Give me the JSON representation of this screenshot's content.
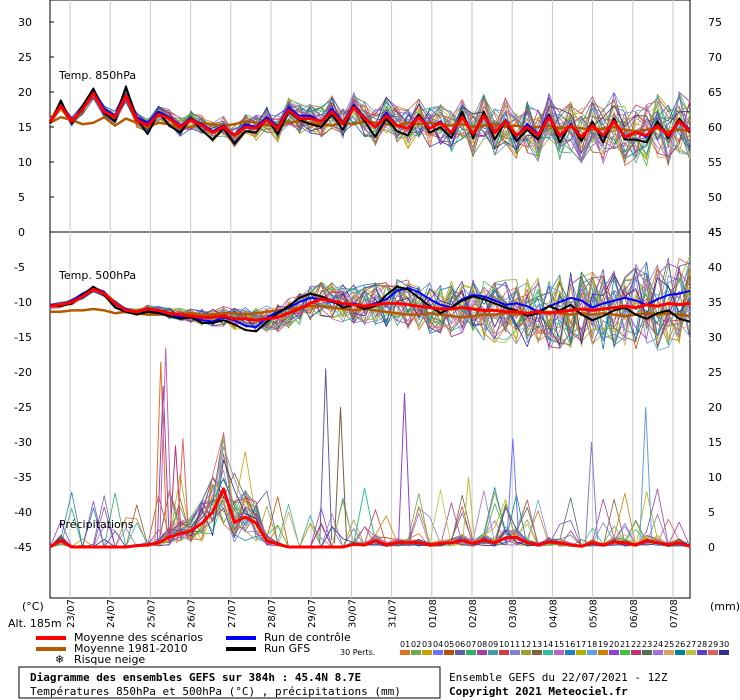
{
  "chart_data": {
    "type": "line",
    "title": "Diagramme des ensembles GEFS sur 384h : 45.4N 8.7E",
    "subtitle": "Températures 850hPa et 500hPa (°C) , précipitations (mm)",
    "run_info": "Ensemble GEFS du 22/07/2021 - 12Z",
    "copyright": "Copyright 2021 Meteociel.fr",
    "altitude": "Alt. 185m",
    "left_unit": "(°C)",
    "right_unit": "(mm)",
    "dates": [
      "23/07",
      "24/07",
      "25/07",
      "26/07",
      "27/07",
      "28/07",
      "29/07",
      "30/07",
      "31/07",
      "01/08",
      "02/08",
      "03/08",
      "04/08",
      "05/08",
      "06/08",
      "07/08"
    ],
    "panels": [
      {
        "label": "Temp. 850hPa",
        "left_ticks": [
          "30",
          "25",
          "20",
          "15",
          "10",
          "5",
          "0"
        ],
        "right_ticks": [
          "75",
          "70",
          "65",
          "60",
          "55",
          "50",
          "45"
        ],
        "ylim": [
          0,
          30
        ],
        "mean": [
          15.8,
          18.0,
          15.8,
          17.5,
          19.8,
          17.2,
          16.4,
          19.5,
          16.0,
          15.2,
          16.8,
          16.2,
          15.0,
          16.0,
          15.2,
          14.2,
          15.0,
          13.8,
          15.0,
          14.8,
          16.0,
          14.8,
          17.4,
          16.2,
          16.2,
          15.8,
          17.2,
          15.4,
          17.8,
          16.2,
          15.0,
          16.6,
          15.2,
          14.8,
          16.4,
          14.8,
          15.6,
          14.2,
          16.4,
          14.0,
          16.6,
          14.2,
          15.8,
          13.8,
          15.0,
          13.8,
          16.4,
          13.8,
          15.2,
          13.6,
          15.2,
          13.8,
          15.8,
          13.6,
          14.2,
          13.8,
          15.2,
          13.8,
          15.8,
          14.4
        ],
        "gfs": [
          15.5,
          18.8,
          15.5,
          18.0,
          20.5,
          17.0,
          15.8,
          20.8,
          16.2,
          14.0,
          17.0,
          15.2,
          14.2,
          16.2,
          14.5,
          13.2,
          14.8,
          12.6,
          14.4,
          14.2,
          16.2,
          14.0,
          17.2,
          16.0,
          15.4,
          15.0,
          16.8,
          14.6,
          18.0,
          15.8,
          13.6,
          16.2,
          14.4,
          13.8,
          16.8,
          14.2,
          15.0,
          13.4,
          17.2,
          13.4,
          17.2,
          13.2,
          15.8,
          13.0,
          14.6,
          13.2,
          16.6,
          12.8,
          15.4,
          13.0,
          15.8,
          12.8,
          16.2,
          13.2,
          13.2,
          12.8,
          15.8,
          13.4,
          16.2,
          14.2
        ],
        "control": [
          15.6,
          18.6,
          15.8,
          17.9,
          20.4,
          17.6,
          16.6,
          20.6,
          16.4,
          15.6,
          17.2,
          16.4,
          15.2,
          16.2,
          15.4,
          14.4,
          15.2,
          13.8,
          15.4,
          15.0,
          16.4,
          15.0,
          17.8,
          16.6,
          16.6,
          15.8,
          17.6,
          15.6,
          18.2,
          16.4,
          15.0,
          17.0,
          15.2,
          14.8,
          16.8,
          14.8,
          15.8,
          14.0,
          16.6,
          14.0,
          17.0,
          14.2,
          16.0,
          13.6,
          15.4,
          14.0,
          16.8,
          13.6,
          15.4,
          13.4,
          15.4,
          13.6,
          16.0,
          13.4,
          14.2,
          13.6,
          15.6,
          13.8,
          16.0,
          14.6
        ],
        "climate": [
          15.6,
          16.4,
          16.0,
          15.4,
          15.6,
          16.4,
          15.2,
          16.2,
          15.6,
          15.0,
          15.6,
          15.4,
          14.8,
          15.0,
          15.6,
          15.4,
          15.2,
          15.4,
          15.8,
          15.6,
          15.2,
          15.4,
          15.6,
          15.8,
          15.6,
          15.4,
          15.2,
          15.6,
          15.4,
          15.8,
          15.6,
          15.4,
          15.2,
          15.6,
          15.4,
          15.6,
          15.4,
          15.2,
          15.4,
          15.0,
          15.2,
          15.4,
          15.0,
          15.2,
          14.8,
          15.0,
          15.2,
          14.8,
          15.0,
          14.8,
          14.6,
          14.8,
          15.0,
          14.6,
          14.4,
          14.6,
          14.8,
          14.4,
          14.6,
          14.4
        ]
      },
      {
        "label": "Temp. 500hPa",
        "left_ticks": [
          "-5",
          "-10",
          "-15",
          "-20",
          "-25",
          "-30",
          "-35",
          "-40",
          "-45"
        ],
        "right_ticks": [
          "45",
          "40",
          "35",
          "30",
          "25",
          "20",
          "15",
          "10",
          "5",
          "0"
        ],
        "ylim": [
          -45,
          -5
        ],
        "mean": [
          -10.6,
          -10.4,
          -10.0,
          -9.2,
          -8.2,
          -8.8,
          -10.2,
          -11.2,
          -11.4,
          -11.0,
          -11.2,
          -11.6,
          -11.8,
          -12.0,
          -12.2,
          -12.2,
          -12.0,
          -12.4,
          -12.4,
          -12.6,
          -12.4,
          -12.2,
          -11.6,
          -11.0,
          -10.2,
          -9.6,
          -9.8,
          -10.2,
          -10.4,
          -10.6,
          -10.4,
          -10.2,
          -10.2,
          -10.4,
          -10.6,
          -10.8,
          -11.0,
          -11.0,
          -10.8,
          -11.0,
          -11.2,
          -11.2,
          -11.4,
          -11.4,
          -11.6,
          -11.4,
          -11.6,
          -11.4,
          -11.2,
          -11.0,
          -11.2,
          -11.0,
          -10.8,
          -10.6,
          -10.8,
          -10.4,
          -10.6,
          -10.2,
          -10.4,
          -10.2
        ],
        "gfs": [
          -10.6,
          -10.6,
          -10.2,
          -9.0,
          -7.8,
          -9.0,
          -10.8,
          -11.4,
          -11.8,
          -11.4,
          -11.6,
          -12.0,
          -12.4,
          -12.2,
          -13.0,
          -13.0,
          -12.6,
          -13.2,
          -14.0,
          -14.2,
          -12.8,
          -11.6,
          -10.6,
          -9.4,
          -8.8,
          -9.2,
          -9.8,
          -10.8,
          -10.4,
          -11.0,
          -10.6,
          -9.0,
          -7.8,
          -8.2,
          -9.4,
          -10.6,
          -11.6,
          -10.8,
          -9.8,
          -9.2,
          -9.6,
          -10.2,
          -10.8,
          -11.2,
          -12.0,
          -11.6,
          -10.6,
          -11.2,
          -10.4,
          -11.8,
          -12.6,
          -12.0,
          -11.2,
          -10.8,
          -11.8,
          -12.4,
          -11.6,
          -11.2,
          -12.4,
          -12.8
        ],
        "control": [
          -10.4,
          -10.4,
          -9.8,
          -8.8,
          -8.0,
          -8.6,
          -10.4,
          -11.0,
          -11.4,
          -11.2,
          -11.4,
          -11.6,
          -12.2,
          -12.2,
          -12.6,
          -12.8,
          -12.2,
          -12.6,
          -13.4,
          -13.6,
          -12.2,
          -11.4,
          -10.8,
          -10.0,
          -9.4,
          -9.6,
          -10.0,
          -10.4,
          -10.2,
          -10.6,
          -10.2,
          -9.6,
          -8.4,
          -8.0,
          -8.6,
          -9.6,
          -10.4,
          -10.8,
          -9.6,
          -9.0,
          -9.2,
          -9.8,
          -10.4,
          -10.2,
          -10.6,
          -11.4,
          -10.6,
          -10.0,
          -9.4,
          -9.8,
          -10.8,
          -10.2,
          -9.8,
          -9.4,
          -9.8,
          -10.4,
          -9.6,
          -9.0,
          -8.8,
          -8.4
        ],
        "climate": [
          -11.4,
          -11.4,
          -11.2,
          -11.2,
          -11.0,
          -11.2,
          -11.6,
          -11.4,
          -11.6,
          -11.8,
          -11.8,
          -11.6,
          -11.8,
          -11.6,
          -11.8,
          -11.8,
          -11.6,
          -11.6,
          -11.8,
          -11.6,
          -11.4,
          -11.2,
          -11.0,
          -10.8,
          -10.6,
          -10.6,
          -10.8,
          -11.0,
          -11.2,
          -11.0,
          -11.2,
          -11.4,
          -11.6,
          -11.8,
          -11.8,
          -11.6,
          -11.8,
          -12.0,
          -12.2,
          -12.0,
          -11.8,
          -11.8,
          -11.6,
          -11.8,
          -11.6,
          -11.6,
          -11.4,
          -11.6,
          -11.8,
          -11.6,
          -11.8,
          -11.6,
          -11.8,
          -12.0,
          -11.8,
          -11.6,
          -11.8,
          -11.6,
          -11.8,
          -12.0
        ]
      }
    ],
    "precip_label": "Précipitations",
    "precip_mean_mm": [
      0,
      0.9,
      0,
      0,
      0,
      0,
      0,
      0,
      0.2,
      0.3,
      0.6,
      1.4,
      1.9,
      2.3,
      3.4,
      5.0,
      8.3,
      3.5,
      4.3,
      3.4,
      0.9,
      0.4,
      0,
      0,
      0,
      0,
      0,
      0,
      0.4,
      0.3,
      0.9,
      0.3,
      0.6,
      0.7,
      0.6,
      0.3,
      0.5,
      0.6,
      0.9,
      0.5,
      1.0,
      0.6,
      1.3,
      1.4,
      0.6,
      0.3,
      0.7,
      0.6,
      0.3,
      0.1,
      0.6,
      0.3,
      0.7,
      0.6,
      0.3,
      0.9,
      0.6,
      0.3,
      0.6,
      0.1
    ],
    "precip_peaks_mm": [
      {
        "t": 45,
        "mm": 26.5
      },
      {
        "t": 46,
        "mm": 23.0
      },
      {
        "t": 47,
        "mm": 28.5
      },
      {
        "t": 51,
        "mm": 14.5
      },
      {
        "t": 54,
        "mm": 15.5
      },
      {
        "t": 112,
        "mm": 25.5
      },
      {
        "t": 118,
        "mm": 20.0
      },
      {
        "t": 144,
        "mm": 22.0
      },
      {
        "t": 170,
        "mm": 10.0
      },
      {
        "t": 188,
        "mm": 15.5
      },
      {
        "t": 220,
        "mm": 15.0
      },
      {
        "t": 242,
        "mm": 20.0
      }
    ],
    "legend": [
      {
        "label": "Moyenne des scénarios",
        "color": "#ff0000"
      },
      {
        "label": "Moyenne 1981-2010",
        "color": "#b35a00"
      },
      {
        "label": "Risque neige",
        "color": "#6ab0e8"
      },
      {
        "label": "Run de contrôle",
        "color": "#0000ff"
      },
      {
        "label": "Run GFS",
        "color": "#000000"
      }
    ],
    "perts_label": "30 Perts.",
    "perturbations": [
      "01",
      "02",
      "03",
      "04",
      "05",
      "06",
      "07",
      "08",
      "09",
      "10",
      "11",
      "12",
      "13",
      "14",
      "15",
      "16",
      "17",
      "18",
      "19",
      "20",
      "21",
      "22",
      "23",
      "24",
      "25",
      "26",
      "27",
      "28",
      "29",
      "30"
    ],
    "pert_colors": [
      "#e07020",
      "#70a850",
      "#c8a000",
      "#7070ff",
      "#b85000",
      "#6060a0",
      "#30b060",
      "#a040a0",
      "#40a0a0",
      "#d04040",
      "#8080d0",
      "#a0a030",
      "#806040",
      "#30c0a0",
      "#c060c0",
      "#2080c0",
      "#b0b000",
      "#60a0e0",
      "#d08000",
      "#9040d0",
      "#40c040",
      "#c03070",
      "#507050",
      "#a070e0",
      "#e0a060",
      "#0080a0",
      "#c0c040",
      "#6040c0",
      "#e06060",
      "#303090"
    ]
  }
}
